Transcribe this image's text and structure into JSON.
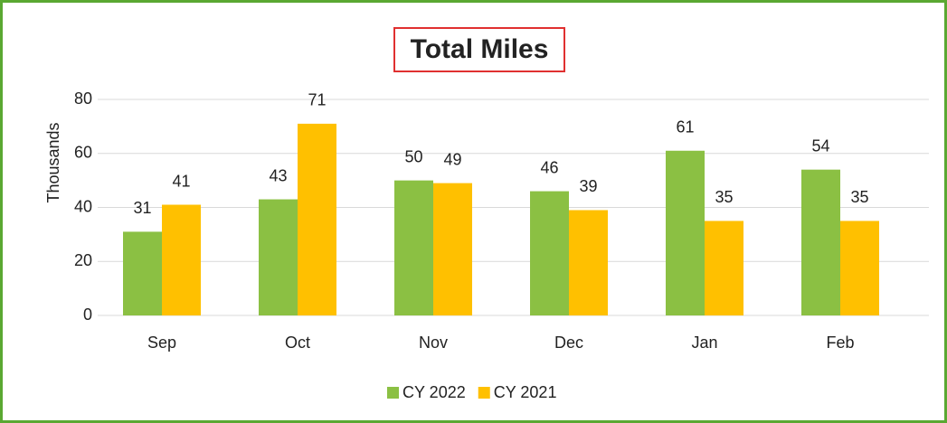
{
  "chart_data": {
    "type": "bar",
    "title": "Total Miles",
    "y_label": "Thousands",
    "categories": [
      "Sep",
      "Oct",
      "Nov",
      "Dec",
      "Jan",
      "Feb"
    ],
    "series": [
      {
        "name": "CY 2022",
        "color": "#8bc043",
        "values": [
          31,
          43,
          50,
          46,
          61,
          54
        ]
      },
      {
        "name": "CY 2021",
        "color": "#ffc000",
        "values": [
          41,
          71,
          49,
          39,
          35,
          35
        ]
      }
    ],
    "ylim": [
      0,
      80
    ],
    "yticks": [
      0,
      20,
      40,
      60,
      80
    ],
    "grid": true,
    "legend": "bottom"
  }
}
